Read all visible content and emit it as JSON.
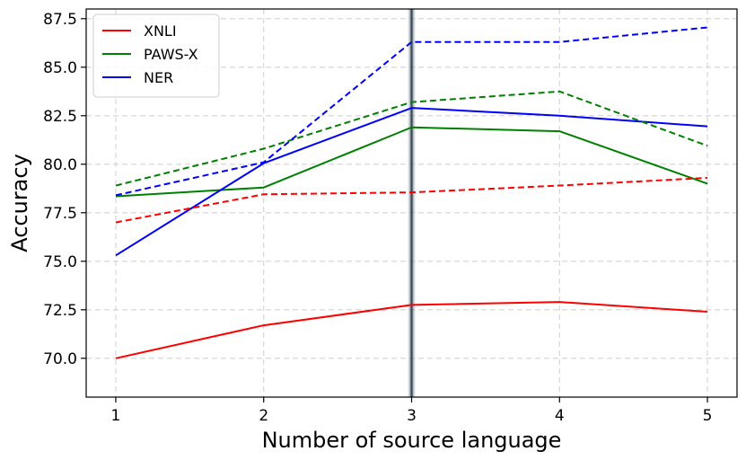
{
  "chart_data": {
    "type": "line",
    "title": "",
    "xlabel": "Number of source language",
    "ylabel": "Accuracy",
    "x": [
      1,
      2,
      3,
      4,
      5
    ],
    "xlim": [
      0.8,
      5.2
    ],
    "ylim": [
      68.0,
      88.0
    ],
    "yticks": [
      "70.0",
      "72.5",
      "75.0",
      "77.5",
      "80.0",
      "82.5",
      "85.0",
      "87.5"
    ],
    "xticks": [
      "1",
      "2",
      "3",
      "4",
      "5"
    ],
    "grid": true,
    "legend_position": "top-left",
    "vertical_marker_x": 3,
    "series": [
      {
        "name": "XNLI",
        "color": "#ff0000",
        "style": "solid",
        "values": [
          70.0,
          71.7,
          72.75,
          72.9,
          72.4
        ]
      },
      {
        "name": "PAWS-X",
        "color": "#008000",
        "style": "solid",
        "values": [
          78.35,
          78.8,
          81.9,
          81.7,
          79.0
        ]
      },
      {
        "name": "NER",
        "color": "#0000ff",
        "style": "solid",
        "values": [
          75.3,
          80.05,
          82.9,
          82.5,
          81.95
        ]
      },
      {
        "name": "",
        "color": "#ff0000",
        "style": "dashed",
        "values": [
          77.0,
          78.45,
          78.55,
          78.9,
          79.3
        ]
      },
      {
        "name": "",
        "color": "#008000",
        "style": "dashed",
        "values": [
          78.9,
          80.8,
          83.2,
          83.75,
          80.95
        ]
      },
      {
        "name": "",
        "color": "#0000ff",
        "style": "dashed",
        "values": [
          78.4,
          80.1,
          86.3,
          86.3,
          87.05
        ]
      }
    ]
  }
}
